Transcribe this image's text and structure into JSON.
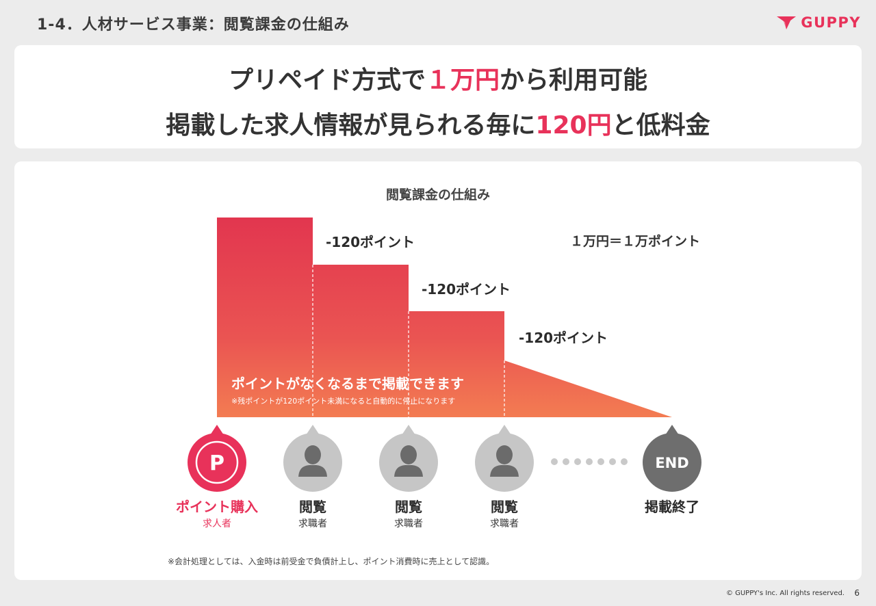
{
  "header": {
    "title": "1-4．人材サービス事業：閲覧課金の仕組み",
    "logo_text": "GUPPY"
  },
  "headline": {
    "line1_before": "プリペイド方式で",
    "line1_accent": "１万円",
    "line1_after": "から利用可能",
    "line2_before": "掲載した求人情報が見られる毎に",
    "line2_accent": "120円",
    "line2_after": "と低料金"
  },
  "diagram": {
    "title": "閲覧課金の仕組み",
    "rate_note": "１万円＝１万ポイント",
    "step_labels": [
      "-120ポイント",
      "-120ポイント",
      "-120ポイント"
    ],
    "overlay_main": "ポイントがなくなるまで掲載できます",
    "overlay_sub": "※残ポイントが120ポイント未満になると自動的に停止になります",
    "nodes": [
      {
        "badge": "P",
        "label": "ポイント購入",
        "sub": "求人者"
      },
      {
        "label": "閲覧",
        "sub": "求職者"
      },
      {
        "label": "閲覧",
        "sub": "求職者"
      },
      {
        "label": "閲覧",
        "sub": "求職者"
      },
      {
        "badge": "END",
        "label": "掲載終了"
      }
    ],
    "colors": {
      "accent": "#e8325a",
      "gradient_top": "#e2364f",
      "gradient_bottom": "#f37c52",
      "person_gray": "#c6c6c6",
      "end_gray": "#6e6e6e"
    }
  },
  "footnote": "※会計処理としては、入金時は前受金で負債計上し、ポイント消費時に売上として認識。",
  "footer": {
    "copyright": "© GUPPY's Inc. All rights reserved.",
    "page": "6"
  }
}
